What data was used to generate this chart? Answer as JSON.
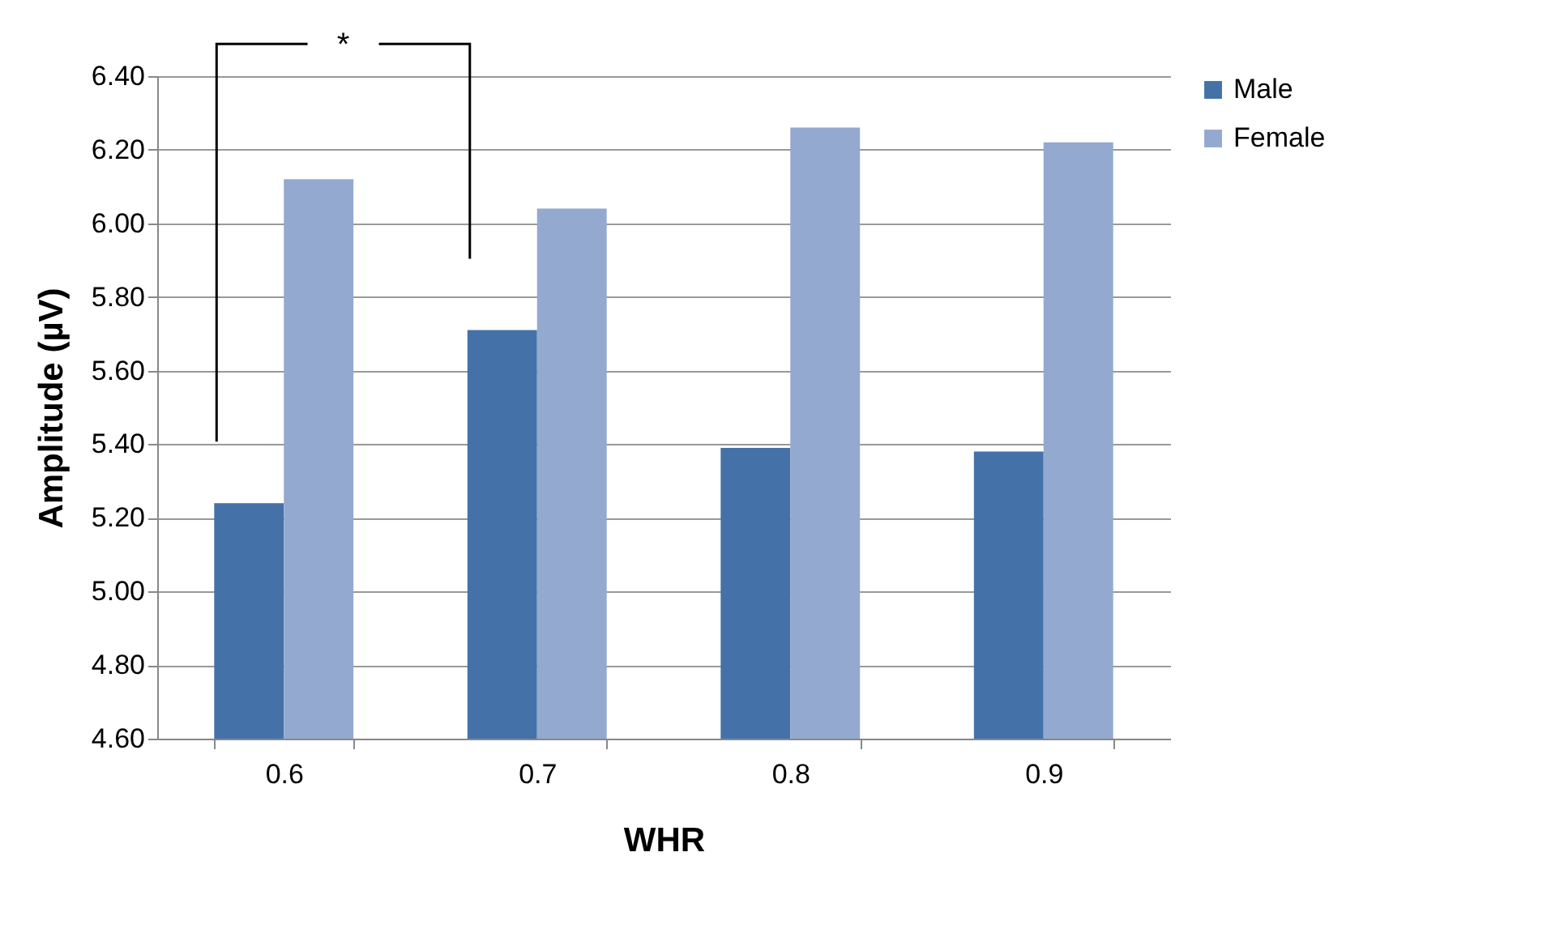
{
  "chart_data": {
    "type": "bar",
    "xlabel": "WHR",
    "ylabel": "Amplitude (µV)",
    "categories": [
      "0.6",
      "0.7",
      "0.8",
      "0.9"
    ],
    "series": [
      {
        "name": "Male",
        "color": "#4472a8",
        "values": [
          5.24,
          5.71,
          5.39,
          5.38
        ]
      },
      {
        "name": "Female",
        "color": "#94a9cf",
        "values": [
          6.12,
          6.04,
          6.26,
          6.22
        ]
      }
    ],
    "ylim": [
      4.6,
      6.4
    ],
    "yticks": [
      {
        "value": 4.6,
        "label": "4.60"
      },
      {
        "value": 4.8,
        "label": "4.80"
      },
      {
        "value": 5.0,
        "label": "5.00"
      },
      {
        "value": 5.2,
        "label": "5.20"
      },
      {
        "value": 5.4,
        "label": "5.40"
      },
      {
        "value": 5.6,
        "label": "5.60"
      },
      {
        "value": 5.8,
        "label": "5.80"
      },
      {
        "value": 6.0,
        "label": "6.00"
      },
      {
        "value": 6.2,
        "label": "6.20"
      },
      {
        "value": 6.4,
        "label": "6.40"
      }
    ],
    "grid": "y",
    "legend": "right",
    "annotations": [
      "*"
    ]
  }
}
